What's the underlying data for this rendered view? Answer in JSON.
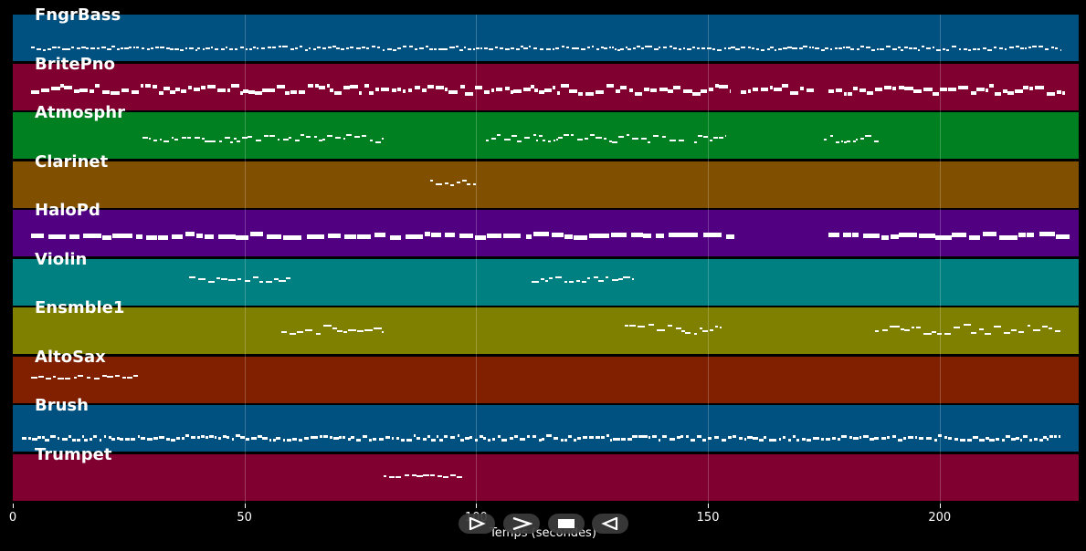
{
  "tracks": [
    {
      "name": "FngrBass",
      "color": "#005080",
      "density": "dense"
    },
    {
      "name": "BritePno",
      "color": "#800030",
      "density": "dense"
    },
    {
      "name": "Atmosphr",
      "color": "#008020",
      "density": "sparse"
    },
    {
      "name": "Clarinet",
      "color": "#805000",
      "density": "sparse"
    },
    {
      "name": "HaloPd",
      "color": "#500080",
      "density": "dense"
    },
    {
      "name": "Violin",
      "color": "#008080",
      "density": "sparse"
    },
    {
      "name": "Ensmble1",
      "color": "#808000",
      "density": "sparse"
    },
    {
      "name": "AltoSax",
      "color": "#802000",
      "density": "sparse"
    },
    {
      "name": "Brush",
      "color": "#005080",
      "density": "dense"
    },
    {
      "name": "Trumpet",
      "color": "#800030",
      "density": "sparse"
    }
  ],
  "xaxis": {
    "label": "Temps (secondes)",
    "min": 0,
    "max": 230,
    "ticks": [
      0,
      50,
      100,
      150,
      200
    ]
  },
  "controls": [
    {
      "name": "play",
      "icon": "play-icon"
    },
    {
      "name": "forward",
      "icon": "forward-icon"
    },
    {
      "name": "stop",
      "icon": "stop-icon"
    },
    {
      "name": "rewind",
      "icon": "rewind-icon"
    }
  ]
}
